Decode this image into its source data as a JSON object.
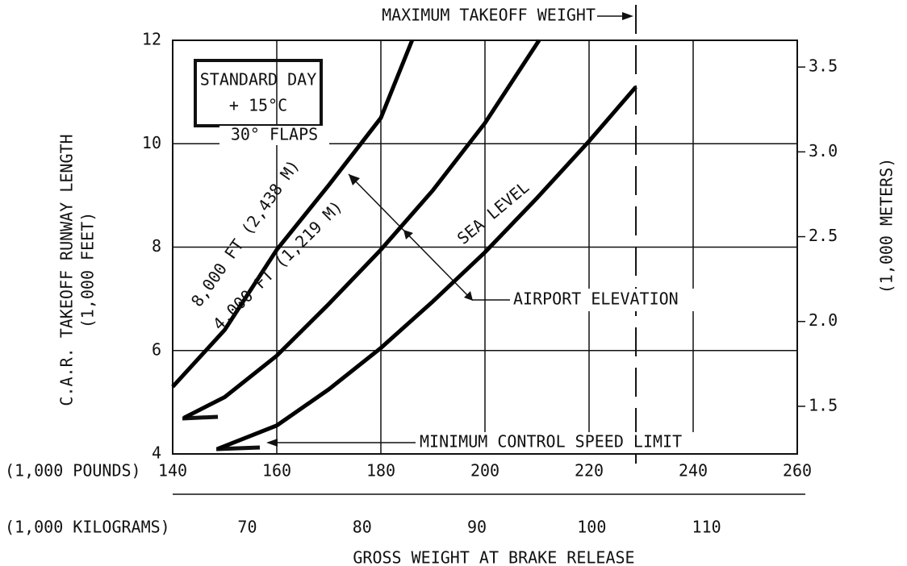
{
  "chart_data": {
    "type": "line",
    "xlim": [
      140,
      260
    ],
    "xticks": [
      140,
      160,
      180,
      200,
      220,
      240,
      260
    ],
    "x2lim": [
      63.5,
      117.9
    ],
    "x2ticks": [
      70,
      80,
      90,
      100,
      110
    ],
    "ylim": [
      4,
      12
    ],
    "yticks": [
      4,
      6,
      8,
      10,
      12
    ],
    "y2lim": [
      1.2192,
      3.6576
    ],
    "y2ticks": [
      1.5,
      {
        "value": 2,
        "label": "2.0"
      },
      2.5,
      {
        "value": 3,
        "label": "3.0"
      },
      3.5
    ],
    "grid": true,
    "x_label": "(1,000 POUNDS)",
    "x2_label": "(1,000 KILOGRAMS)",
    "x_title": "GROSS WEIGHT AT BRAKE RELEASE",
    "y_label": "C.A.R. TAKEOFF RUNWAY LENGTH",
    "y_unit": "(1,000 FEET)",
    "y2_label": "(1,000 METERS)",
    "series": [
      {
        "name": "8,000 FT (2,438 M)",
        "color": "#000000",
        "x": [
          140,
          150,
          160,
          170,
          180,
          186
        ],
        "values": [
          5.3,
          6.4,
          7.95,
          9.2,
          10.5,
          12
        ]
      },
      {
        "name": "4,000 FT (1,219 M)",
        "color": "#000000",
        "x": [
          142.2,
          150,
          160,
          170,
          180,
          190,
          200,
          210.4
        ],
        "values": [
          4.7,
          5.1,
          5.9,
          6.9,
          7.95,
          9.1,
          10.4,
          12
        ]
      },
      {
        "name": "SEA LEVEL",
        "color": "#000000",
        "x": [
          148.7,
          160,
          170,
          180,
          190,
          200,
          210,
          220,
          229
        ],
        "values": [
          4.1,
          4.55,
          5.25,
          6.05,
          6.95,
          7.9,
          8.95,
          10.05,
          11.1
        ]
      }
    ],
    "annotations": {
      "box": [
        "STANDARD DAY",
        "+ 15°C"
      ],
      "flaps": "30° FLAPS",
      "airport_elevation": "AIRPORT ELEVATION",
      "min_speed": "MINIMUM CONTROL SPEED LIMIT",
      "max_takeoff": {
        "label": "MAXIMUM TAKEOFF WEIGHT",
        "x": 229
      }
    }
  }
}
